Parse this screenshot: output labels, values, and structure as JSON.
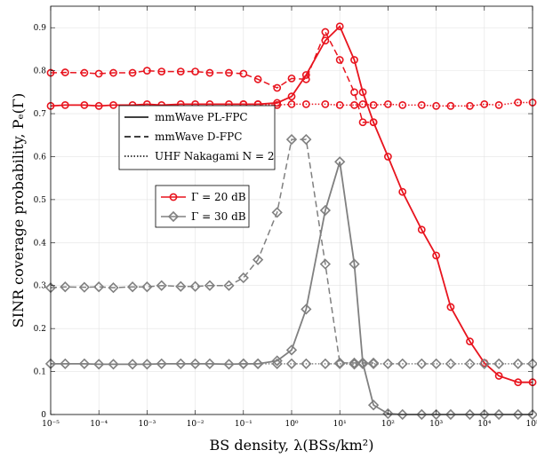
{
  "chart_data": {
    "type": "line",
    "x_scale": "log",
    "xlabel": "BS density, λ(BSs/km²)",
    "ylabel": "SINR coverage probability, Pₑ(Γ)",
    "xlim": [
      1e-05,
      100000
    ],
    "ylim": [
      0,
      0.95
    ],
    "grid": true,
    "x_ticks": [
      {
        "value": 1e-05,
        "label": "10⁻⁵"
      },
      {
        "value": 0.0001,
        "label": "10⁻⁴"
      },
      {
        "value": 0.001,
        "label": "10⁻³"
      },
      {
        "value": 0.01,
        "label": "10⁻²"
      },
      {
        "value": 0.1,
        "label": "10⁻¹"
      },
      {
        "value": 1,
        "label": "10⁰"
      },
      {
        "value": 10,
        "label": "10¹"
      },
      {
        "value": 100,
        "label": "10²"
      },
      {
        "value": 1000,
        "label": "10³"
      },
      {
        "value": 10000,
        "label": "10⁴"
      },
      {
        "value": 100000,
        "label": "10⁵"
      }
    ],
    "y_ticks": [
      {
        "value": 0,
        "label": "0"
      },
      {
        "value": 0.1,
        "label": "0.1"
      },
      {
        "value": 0.2,
        "label": "0.2"
      },
      {
        "value": 0.3,
        "label": "0.3"
      },
      {
        "value": 0.4,
        "label": "0.4"
      },
      {
        "value": 0.5,
        "label": "0.5"
      },
      {
        "value": 0.6,
        "label": "0.6"
      },
      {
        "value": 0.7,
        "label": "0.7"
      },
      {
        "value": 0.8,
        "label": "0.8"
      },
      {
        "value": 0.9,
        "label": "0.9"
      }
    ],
    "legend_linestyle": {
      "placement": "upper-left",
      "entries": [
        {
          "label": "mmWave PL-FPC",
          "dash": "solid"
        },
        {
          "label": "mmWave D-FPC",
          "dash": "dashed"
        },
        {
          "label": "UHF Nakagami N = 2",
          "dash": "dotted"
        }
      ]
    },
    "legend_marker": {
      "placement": "middle-left",
      "entries": [
        {
          "label": "Γ = 20 dB",
          "color": "#e8141e",
          "marker": "circle"
        },
        {
          "label": "Γ = 30 dB",
          "color": "#808080",
          "marker": "diamond"
        }
      ]
    },
    "series": [
      {
        "group": "Γ = 20 dB",
        "style": "solid",
        "color": "#e8141e",
        "marker": "circle",
        "x": [
          1e-05,
          2e-05,
          5e-05,
          0.0001,
          0.0002,
          0.0005,
          0.001,
          0.002,
          0.005,
          0.01,
          0.02,
          0.05,
          0.1,
          0.2,
          0.5,
          1,
          2,
          5,
          10,
          20,
          30,
          50,
          100,
          200,
          500,
          1000,
          2000,
          5000,
          10000,
          20000,
          50000,
          100000
        ],
        "y": [
          0.718,
          0.72,
          0.72,
          0.718,
          0.72,
          0.72,
          0.722,
          0.72,
          0.722,
          0.722,
          0.722,
          0.722,
          0.722,
          0.722,
          0.725,
          0.74,
          0.79,
          0.87,
          0.903,
          0.825,
          0.75,
          0.68,
          0.6,
          0.518,
          0.43,
          0.37,
          0.25,
          0.17,
          0.12,
          0.09,
          0.075,
          0.075
        ]
      },
      {
        "group": "Γ = 20 dB",
        "style": "dashed",
        "color": "#e8141e",
        "marker": "circle",
        "x": [
          1e-05,
          2e-05,
          5e-05,
          0.0001,
          0.0002,
          0.0005,
          0.001,
          0.002,
          0.005,
          0.01,
          0.02,
          0.05,
          0.1,
          0.2,
          0.5,
          1,
          2,
          5,
          10,
          20,
          30,
          50
        ],
        "y": [
          0.795,
          0.796,
          0.795,
          0.793,
          0.795,
          0.795,
          0.8,
          0.798,
          0.798,
          0.798,
          0.795,
          0.795,
          0.793,
          0.78,
          0.76,
          0.782,
          0.78,
          0.89,
          0.825,
          0.75,
          0.68,
          0.68
        ]
      },
      {
        "group": "Γ = 20 dB",
        "style": "dotted",
        "color": "#e8141e",
        "marker": "circle",
        "x": [
          0.1,
          0.2,
          0.5,
          1,
          2,
          5,
          10,
          20,
          30,
          50,
          100,
          200,
          500,
          1000,
          2000,
          5000,
          10000,
          20000,
          50000,
          100000
        ],
        "y": [
          0.722,
          0.722,
          0.72,
          0.722,
          0.722,
          0.722,
          0.72,
          0.72,
          0.722,
          0.72,
          0.722,
          0.72,
          0.72,
          0.718,
          0.718,
          0.718,
          0.722,
          0.72,
          0.726,
          0.726
        ]
      },
      {
        "group": "Γ = 30 dB",
        "style": "solid",
        "color": "#808080",
        "marker": "diamond",
        "x": [
          1e-05,
          2e-05,
          5e-05,
          0.0001,
          0.0002,
          0.0005,
          0.001,
          0.002,
          0.005,
          0.01,
          0.02,
          0.05,
          0.1,
          0.2,
          0.5,
          1,
          2,
          5,
          10,
          20,
          30,
          50,
          100,
          200,
          500,
          1000,
          2000,
          5000,
          10000,
          20000,
          50000,
          100000
        ],
        "y": [
          0.118,
          0.118,
          0.118,
          0.117,
          0.117,
          0.117,
          0.117,
          0.118,
          0.118,
          0.118,
          0.118,
          0.117,
          0.118,
          0.118,
          0.125,
          0.15,
          0.245,
          0.475,
          0.588,
          0.35,
          0.12,
          0.022,
          0.002,
          0.0,
          0.0,
          0.0,
          0.0,
          0.0,
          0.0,
          0.0,
          0.0,
          0.0
        ]
      },
      {
        "group": "Γ = 30 dB",
        "style": "dashed",
        "color": "#808080",
        "marker": "diamond",
        "x": [
          1e-05,
          2e-05,
          5e-05,
          0.0001,
          0.0002,
          0.0005,
          0.001,
          0.002,
          0.005,
          0.01,
          0.02,
          0.05,
          0.1,
          0.2,
          0.5,
          1,
          2,
          5,
          10,
          20,
          30,
          50
        ],
        "y": [
          0.295,
          0.297,
          0.296,
          0.297,
          0.295,
          0.297,
          0.297,
          0.3,
          0.298,
          0.298,
          0.3,
          0.3,
          0.318,
          0.36,
          0.47,
          0.64,
          0.64,
          0.35,
          0.12,
          0.12,
          0.12,
          0.12
        ]
      },
      {
        "group": "Γ = 30 dB",
        "style": "dotted",
        "color": "#808080",
        "marker": "diamond",
        "x": [
          0.1,
          0.2,
          0.5,
          1,
          2,
          5,
          10,
          20,
          30,
          50,
          100,
          200,
          500,
          1000,
          2000,
          5000,
          10000,
          20000,
          50000,
          100000
        ],
        "y": [
          0.118,
          0.118,
          0.118,
          0.118,
          0.118,
          0.118,
          0.118,
          0.117,
          0.118,
          0.118,
          0.118,
          0.118,
          0.118,
          0.118,
          0.118,
          0.118,
          0.118,
          0.118,
          0.118,
          0.118
        ]
      }
    ]
  }
}
